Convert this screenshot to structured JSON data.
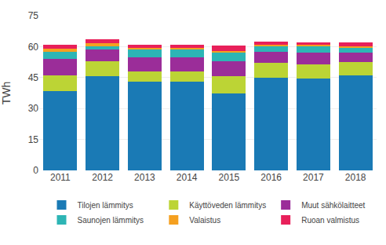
{
  "chart_data": {
    "type": "bar",
    "stacked": true,
    "categories": [
      "2011",
      "2012",
      "2013",
      "2014",
      "2015",
      "2016",
      "2017",
      "2018"
    ],
    "ylabel": "TWh",
    "ylim": [
      0,
      75
    ],
    "yticks": [
      0,
      15,
      30,
      45,
      60,
      75
    ],
    "grid": true,
    "legend": "bottom",
    "series": [
      {
        "name": "Tilojen lämmitys",
        "color": "#1a7ab5",
        "values": [
          38.5,
          45.5,
          43.0,
          43.0,
          37.5,
          45.0,
          44.5,
          46.0
        ]
      },
      {
        "name": "Käyttöveden lämmitys",
        "color": "#bcd435",
        "values": [
          7.5,
          7.5,
          5.0,
          5.0,
          8.0,
          7.0,
          7.0,
          6.5
        ]
      },
      {
        "name": "Muut sähkölaitteet",
        "color": "#9b2d99",
        "values": [
          8.0,
          5.5,
          7.0,
          7.0,
          7.5,
          5.5,
          5.5,
          4.5
        ]
      },
      {
        "name": "Saunojen lämmitys",
        "color": "#2db5b5",
        "values": [
          3.5,
          1.5,
          3.5,
          3.5,
          4.0,
          2.5,
          3.0,
          2.5
        ]
      },
      {
        "name": "Valaistus",
        "color": "#f5a020",
        "values": [
          1.5,
          1.5,
          1.0,
          1.0,
          1.0,
          1.0,
          0.8,
          0.8
        ]
      },
      {
        "name": "Ruoan valmistus",
        "color": "#e8205a",
        "values": [
          2.0,
          2.0,
          1.5,
          1.5,
          2.5,
          1.5,
          1.2,
          1.7
        ]
      }
    ]
  }
}
